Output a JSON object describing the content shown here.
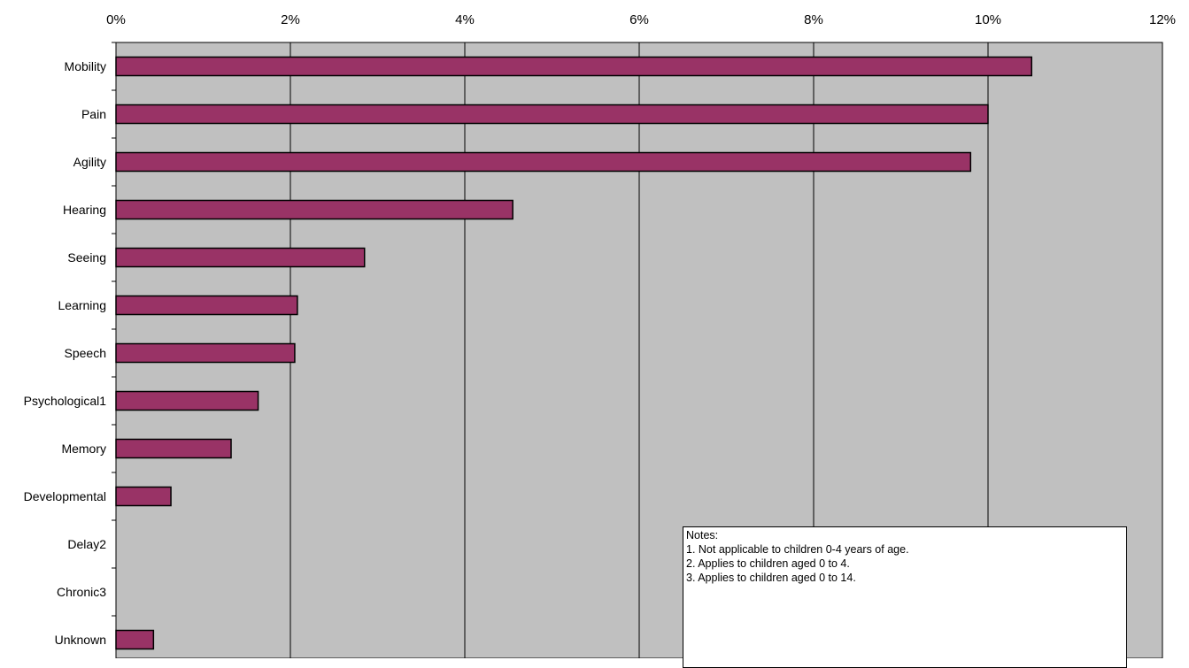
{
  "chart_data": {
    "type": "bar",
    "orientation": "horizontal",
    "title": "",
    "xlabel": "",
    "ylabel": "",
    "xlim": [
      0,
      12
    ],
    "x_ticks": [
      "0%",
      "2%",
      "4%",
      "6%",
      "8%",
      "10%",
      "12%"
    ],
    "x_axis_position": "top",
    "grid": true,
    "plot_background": "#C0C0C0",
    "bar_color": "#993366",
    "categories": [
      "Mobility",
      "Pain",
      "Agility",
      "Hearing",
      "Seeing",
      "Learning",
      "Speech",
      "Psychological1",
      "Memory",
      "Developmental",
      "Delay2",
      "Chronic3",
      "Unknown"
    ],
    "values": [
      10.5,
      10.0,
      9.8,
      4.55,
      2.85,
      2.08,
      2.05,
      1.63,
      1.32,
      0.63,
      0,
      0,
      0.43
    ],
    "units": "%"
  },
  "notes": {
    "heading": "Notes:",
    "lines": [
      "1. Not applicable to children 0-4 years of age.",
      "2. Applies to children aged 0 to 4.",
      "3. Applies to children aged 0 to 14."
    ]
  }
}
